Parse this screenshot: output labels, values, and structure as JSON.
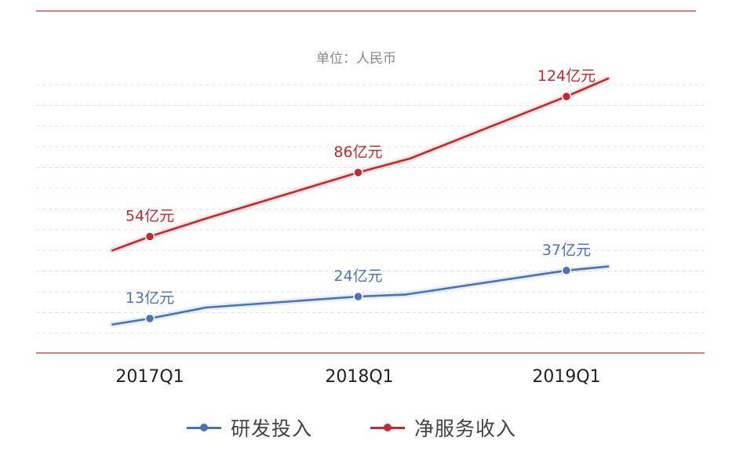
{
  "unit_label": "单位：人民币",
  "chart_data": {
    "type": "line",
    "categories": [
      "2017Q1",
      "2018Q1",
      "2019Q1"
    ],
    "series": [
      {
        "name": "研发投入",
        "color": "#4a72b8",
        "points": [
          [
            -0.18,
            10
          ],
          [
            0,
            13
          ],
          [
            0.27,
            18.5
          ],
          [
            1,
            24
          ],
          [
            1.23,
            25
          ],
          [
            2,
            37
          ],
          [
            2.2,
            39
          ]
        ],
        "labeled": [
          {
            "cat": 0,
            "value": 13,
            "label": "13亿元"
          },
          {
            "cat": 1,
            "value": 24,
            "label": "24亿元"
          },
          {
            "cat": 2,
            "value": 37,
            "label": "37亿元"
          }
        ]
      },
      {
        "name": "净服务收入",
        "color": "#c7282b",
        "points": [
          [
            -0.18,
            47
          ],
          [
            0,
            54
          ],
          [
            0.27,
            63
          ],
          [
            1,
            86
          ],
          [
            1.25,
            93
          ],
          [
            2,
            124
          ],
          [
            2.2,
            133
          ]
        ],
        "labeled": [
          {
            "cat": 0,
            "value": 54,
            "label": "54亿元"
          },
          {
            "cat": 1,
            "value": 86,
            "label": "86亿元"
          },
          {
            "cat": 2,
            "value": 124,
            "label": "124亿元"
          }
        ]
      }
    ],
    "grid": true,
    "legend_position": "bottom"
  }
}
